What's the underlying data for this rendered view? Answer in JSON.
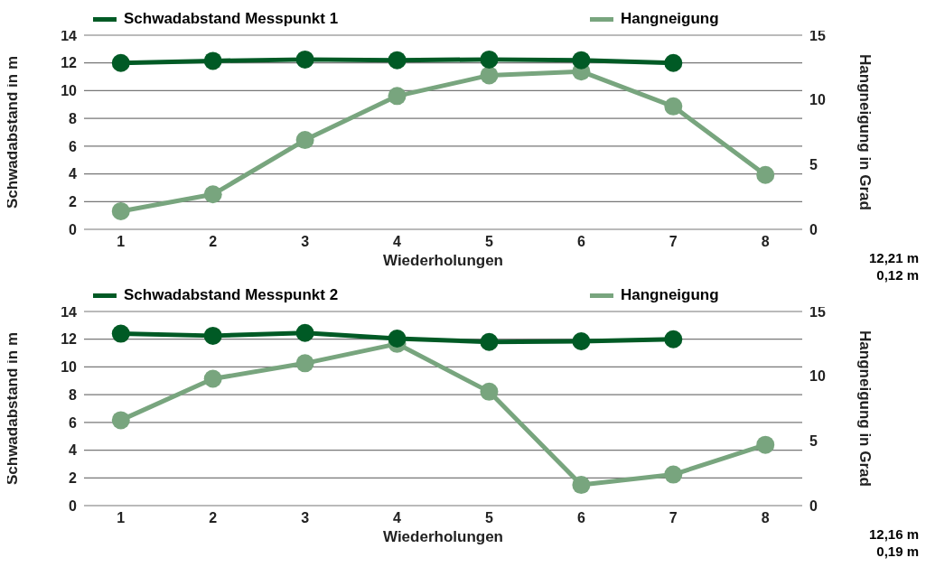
{
  "chart_data": [
    {
      "type": "line",
      "categories": [
        "1",
        "2",
        "3",
        "4",
        "5",
        "6",
        "7",
        "8"
      ],
      "xlabel": "Wiederholungen",
      "ylabel": "Schwadabstand in m",
      "y2label": "Hangneigung in Grad",
      "ylim": [
        0,
        14
      ],
      "yticks": [
        0,
        2,
        4,
        6,
        8,
        10,
        12,
        14
      ],
      "y2lim": [
        0,
        15
      ],
      "y2ticks": [
        0,
        5,
        10,
        15
      ],
      "grid": "y",
      "legend": "top",
      "marker": "circle",
      "line_style": "solid",
      "annotations": [
        "12,21 m",
        "0,12 m"
      ],
      "series": [
        {
          "name": "Schwadabstand Messpunkt 1",
          "color": "#005a25",
          "values": [
            12.0,
            12.15,
            12.25,
            12.2,
            12.25,
            12.2,
            12.0,
            null
          ]
        },
        {
          "name": "Hangneigung",
          "color": "#78a57e",
          "axis": "y2",
          "values": [
            1.4,
            2.7,
            6.9,
            10.3,
            11.9,
            12.2,
            9.5,
            4.2
          ]
        }
      ]
    },
    {
      "type": "line",
      "categories": [
        "1",
        "2",
        "3",
        "4",
        "5",
        "6",
        "7",
        "8"
      ],
      "xlabel": "Wiederholungen",
      "ylabel": "Schwadabstand in m",
      "y2label": "Hangneigung in Grad",
      "ylim": [
        0,
        14
      ],
      "yticks": [
        0,
        2,
        4,
        6,
        8,
        10,
        12,
        14
      ],
      "y2lim": [
        0,
        15
      ],
      "y2ticks": [
        0,
        5,
        10,
        15
      ],
      "grid": "y",
      "legend": "top",
      "marker": "circle",
      "line_style": "solid",
      "annotations": [
        "12,16 m",
        "0,19 m"
      ],
      "series": [
        {
          "name": "Schwadabstand Messpunkt 2",
          "color": "#005a25",
          "values": [
            12.4,
            12.25,
            12.45,
            12.05,
            11.8,
            11.85,
            12.0,
            null
          ]
        },
        {
          "name": "Hangneigung",
          "color": "#78a57e",
          "axis": "y2",
          "values": [
            6.6,
            9.8,
            11.0,
            12.5,
            8.8,
            1.6,
            2.4,
            4.7
          ]
        }
      ]
    }
  ]
}
